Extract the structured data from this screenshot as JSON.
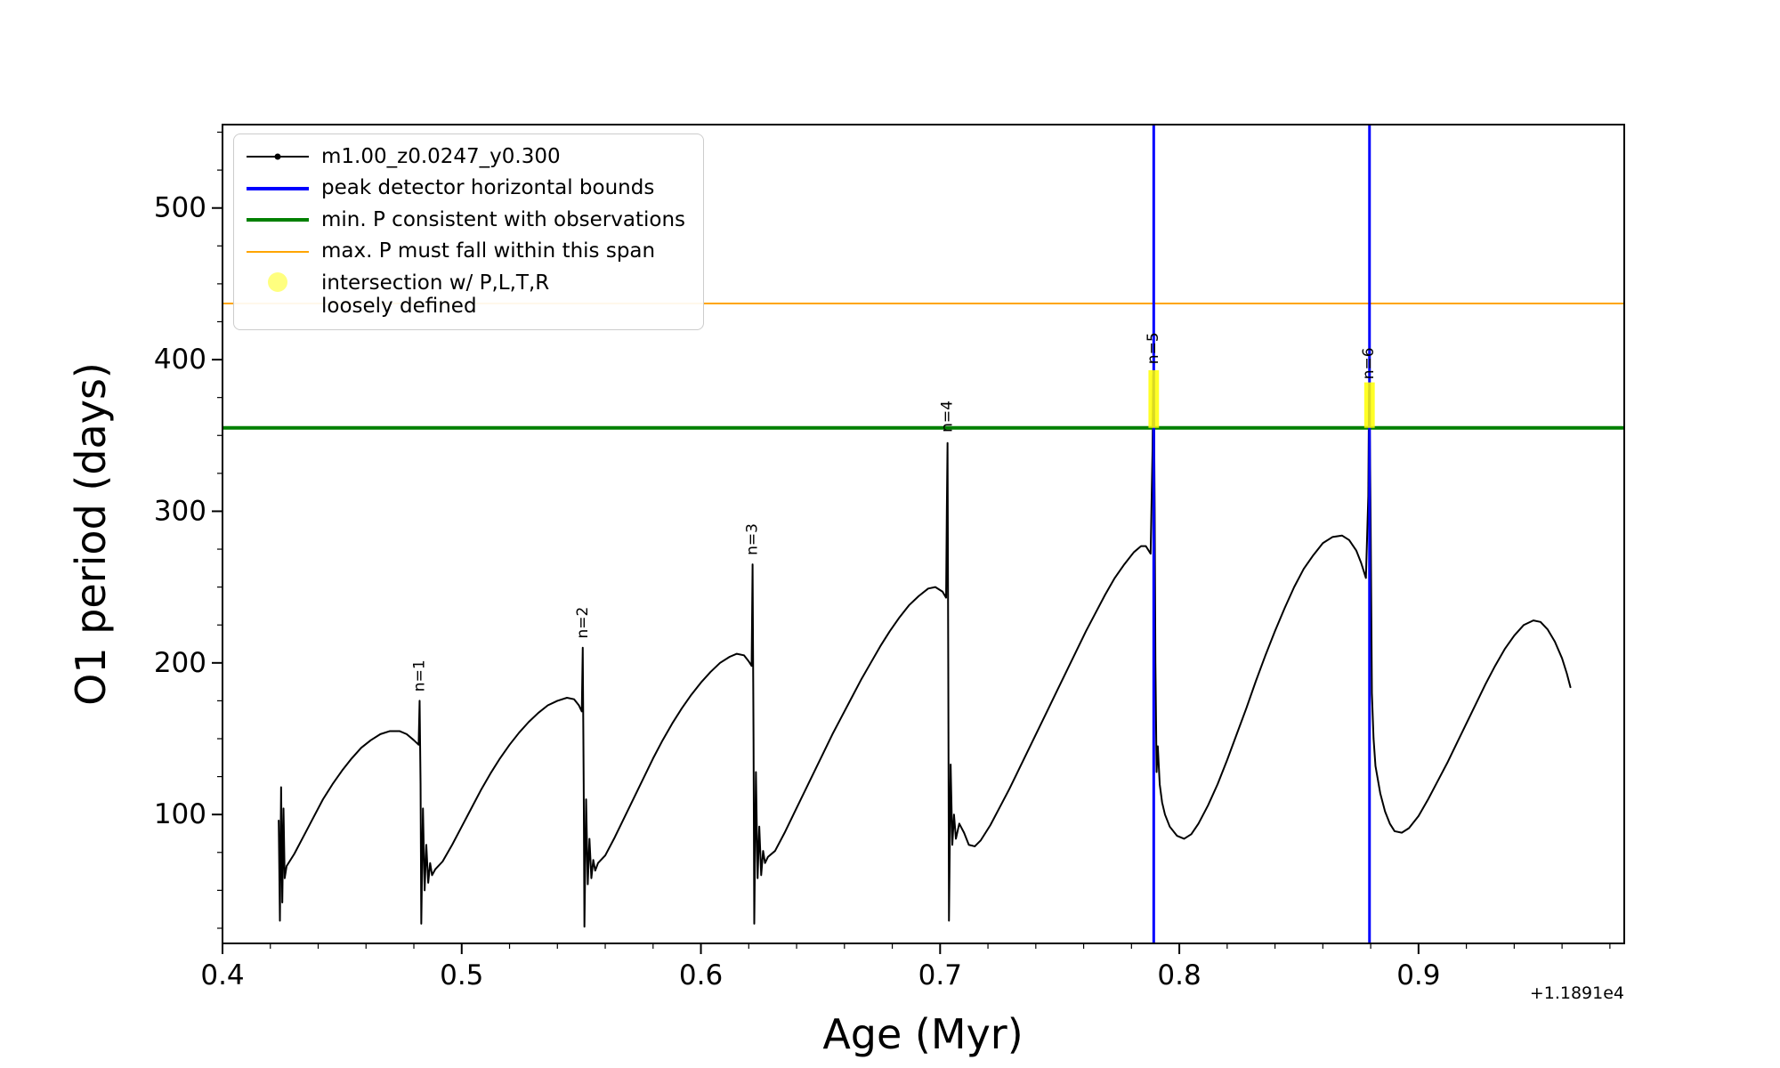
{
  "figure": {
    "xlabel": "Age (Myr)",
    "ylabel": "O1 period (days)",
    "x_offset_text": "+1.1891e4"
  },
  "legend": {
    "items": [
      {
        "label": "m1.00_z0.0247_y0.300",
        "type": "line-dot",
        "color": "#000000",
        "line_width": 2
      },
      {
        "label": "peak detector horizontal bounds",
        "type": "line",
        "color": "#0000ff",
        "line_width": 4
      },
      {
        "label": "min. P consistent with observations",
        "type": "line",
        "color": "#008000",
        "line_width": 4
      },
      {
        "label": "max. P must fall within this span",
        "type": "line",
        "color": "#ffa500",
        "line_width": 2
      },
      {
        "label": "intersection w/ P,L,T,R loosely defined",
        "label_lines": [
          "intersection w/ P,L,T,R",
          "loosely defined"
        ],
        "type": "dot",
        "color": "rgba(255,255,0,0.5)"
      }
    ]
  },
  "chart_data": {
    "type": "line",
    "title": "",
    "xlabel": "Age (Myr)",
    "ylabel": "O1 period (days)",
    "x_axis_offset": "+1.1891e4",
    "xlim": [
      0.4,
      0.986
    ],
    "ylim": [
      15,
      555
    ],
    "x_major_ticks": [
      0.4,
      0.5,
      0.6,
      0.7,
      0.8,
      0.9
    ],
    "x_minor_step": 0.02,
    "y_major_ticks": [
      100,
      200,
      300,
      400,
      500
    ],
    "y_minor_step": 25,
    "grid": false,
    "legend_position": "upper left",
    "series": [
      {
        "name": "m1.00_z0.0247_y0.300",
        "color": "#000000",
        "marker": "dot",
        "points": [
          [
            0.4235,
            96
          ],
          [
            0.424,
            30
          ],
          [
            0.4245,
            118
          ],
          [
            0.425,
            42
          ],
          [
            0.4255,
            104
          ],
          [
            0.426,
            58
          ],
          [
            0.4268,
            66
          ],
          [
            0.43,
            74
          ],
          [
            0.434,
            86
          ],
          [
            0.438,
            98
          ],
          [
            0.442,
            110
          ],
          [
            0.446,
            120
          ],
          [
            0.45,
            129
          ],
          [
            0.454,
            137
          ],
          [
            0.458,
            144
          ],
          [
            0.462,
            149
          ],
          [
            0.466,
            153
          ],
          [
            0.47,
            155
          ],
          [
            0.474,
            155
          ],
          [
            0.477,
            153
          ],
          [
            0.48,
            149
          ],
          [
            0.482,
            146
          ],
          [
            0.4824,
            175
          ],
          [
            0.4828,
            120
          ],
          [
            0.4831,
            28
          ],
          [
            0.4838,
            104
          ],
          [
            0.4845,
            50
          ],
          [
            0.4852,
            80
          ],
          [
            0.486,
            55
          ],
          [
            0.4868,
            68
          ],
          [
            0.4876,
            60
          ],
          [
            0.489,
            64
          ],
          [
            0.492,
            69
          ],
          [
            0.496,
            80
          ],
          [
            0.5,
            92
          ],
          [
            0.504,
            104
          ],
          [
            0.508,
            116
          ],
          [
            0.512,
            127
          ],
          [
            0.516,
            137
          ],
          [
            0.52,
            146
          ],
          [
            0.524,
            154
          ],
          [
            0.528,
            161
          ],
          [
            0.532,
            167
          ],
          [
            0.536,
            172
          ],
          [
            0.54,
            175
          ],
          [
            0.544,
            177
          ],
          [
            0.547,
            176
          ],
          [
            0.549,
            172
          ],
          [
            0.5502,
            168
          ],
          [
            0.5506,
            210
          ],
          [
            0.551,
            120
          ],
          [
            0.5513,
            26
          ],
          [
            0.552,
            110
          ],
          [
            0.5527,
            54
          ],
          [
            0.5534,
            84
          ],
          [
            0.5542,
            58
          ],
          [
            0.555,
            70
          ],
          [
            0.5558,
            63
          ],
          [
            0.557,
            68
          ],
          [
            0.56,
            73
          ],
          [
            0.564,
            85
          ],
          [
            0.568,
            98
          ],
          [
            0.572,
            111
          ],
          [
            0.576,
            124
          ],
          [
            0.58,
            137
          ],
          [
            0.584,
            149
          ],
          [
            0.588,
            160
          ],
          [
            0.592,
            170
          ],
          [
            0.596,
            179
          ],
          [
            0.6,
            187
          ],
          [
            0.604,
            194
          ],
          [
            0.608,
            200
          ],
          [
            0.612,
            204
          ],
          [
            0.615,
            206
          ],
          [
            0.618,
            205
          ],
          [
            0.62,
            201
          ],
          [
            0.6212,
            198
          ],
          [
            0.6216,
            265
          ],
          [
            0.622,
            150
          ],
          [
            0.6223,
            28
          ],
          [
            0.623,
            128
          ],
          [
            0.6237,
            58
          ],
          [
            0.6244,
            92
          ],
          [
            0.6252,
            60
          ],
          [
            0.626,
            76
          ],
          [
            0.6268,
            68
          ],
          [
            0.628,
            72
          ],
          [
            0.631,
            76
          ],
          [
            0.635,
            88
          ],
          [
            0.639,
            101
          ],
          [
            0.643,
            114
          ],
          [
            0.647,
            127
          ],
          [
            0.651,
            140
          ],
          [
            0.655,
            153
          ],
          [
            0.659,
            165
          ],
          [
            0.663,
            177
          ],
          [
            0.667,
            189
          ],
          [
            0.671,
            200
          ],
          [
            0.675,
            211
          ],
          [
            0.679,
            221
          ],
          [
            0.683,
            230
          ],
          [
            0.687,
            238
          ],
          [
            0.691,
            244
          ],
          [
            0.695,
            249
          ],
          [
            0.698,
            250
          ],
          [
            0.701,
            247
          ],
          [
            0.7025,
            243
          ],
          [
            0.7028,
            300
          ],
          [
            0.7031,
            345
          ],
          [
            0.7034,
            200
          ],
          [
            0.7037,
            30
          ],
          [
            0.7044,
            133
          ],
          [
            0.7051,
            80
          ],
          [
            0.7058,
            100
          ],
          [
            0.7066,
            84
          ],
          [
            0.708,
            94
          ],
          [
            0.71,
            88
          ],
          [
            0.712,
            80
          ],
          [
            0.7145,
            79
          ],
          [
            0.717,
            83
          ],
          [
            0.721,
            93
          ],
          [
            0.725,
            105
          ],
          [
            0.729,
            117
          ],
          [
            0.733,
            130
          ],
          [
            0.737,
            143
          ],
          [
            0.741,
            156
          ],
          [
            0.745,
            169
          ],
          [
            0.749,
            182
          ],
          [
            0.753,
            195
          ],
          [
            0.757,
            208
          ],
          [
            0.761,
            221
          ],
          [
            0.765,
            233
          ],
          [
            0.769,
            245
          ],
          [
            0.773,
            256
          ],
          [
            0.777,
            265
          ],
          [
            0.781,
            273
          ],
          [
            0.784,
            277
          ],
          [
            0.786,
            277
          ],
          [
            0.788,
            272
          ],
          [
            0.7888,
            340
          ],
          [
            0.7891,
            390
          ],
          [
            0.7894,
            370
          ],
          [
            0.7897,
            300
          ],
          [
            0.79,
            200
          ],
          [
            0.7905,
            128
          ],
          [
            0.791,
            145
          ],
          [
            0.7918,
            120
          ],
          [
            0.7928,
            108
          ],
          [
            0.794,
            100
          ],
          [
            0.796,
            92
          ],
          [
            0.799,
            86
          ],
          [
            0.802,
            84
          ],
          [
            0.805,
            87
          ],
          [
            0.808,
            94
          ],
          [
            0.812,
            106
          ],
          [
            0.816,
            120
          ],
          [
            0.82,
            136
          ],
          [
            0.824,
            153
          ],
          [
            0.828,
            170
          ],
          [
            0.832,
            188
          ],
          [
            0.836,
            205
          ],
          [
            0.84,
            221
          ],
          [
            0.844,
            236
          ],
          [
            0.848,
            250
          ],
          [
            0.852,
            262
          ],
          [
            0.856,
            271
          ],
          [
            0.86,
            279
          ],
          [
            0.864,
            283
          ],
          [
            0.868,
            284
          ],
          [
            0.871,
            281
          ],
          [
            0.874,
            274
          ],
          [
            0.876,
            266
          ],
          [
            0.878,
            256
          ],
          [
            0.879,
            310
          ],
          [
            0.8793,
            380
          ],
          [
            0.8796,
            360
          ],
          [
            0.88,
            290
          ],
          [
            0.8805,
            180
          ],
          [
            0.8812,
            150
          ],
          [
            0.882,
            132
          ],
          [
            0.884,
            114
          ],
          [
            0.886,
            102
          ],
          [
            0.888,
            94
          ],
          [
            0.89,
            89
          ],
          [
            0.893,
            88
          ],
          [
            0.896,
            91
          ],
          [
            0.9,
            99
          ],
          [
            0.904,
            110
          ],
          [
            0.908,
            122
          ],
          [
            0.912,
            134
          ],
          [
            0.916,
            147
          ],
          [
            0.92,
            160
          ],
          [
            0.924,
            173
          ],
          [
            0.928,
            186
          ],
          [
            0.932,
            198
          ],
          [
            0.936,
            209
          ],
          [
            0.94,
            218
          ],
          [
            0.944,
            225
          ],
          [
            0.948,
            228
          ],
          [
            0.951,
            227
          ],
          [
            0.954,
            222
          ],
          [
            0.957,
            214
          ],
          [
            0.96,
            203
          ],
          [
            0.962,
            193
          ],
          [
            0.9635,
            184
          ]
        ]
      }
    ],
    "vlines": {
      "label": "peak detector horizontal bounds",
      "color": "#0000ff",
      "width": 3,
      "x": [
        0.7893,
        0.8795
      ]
    },
    "hlines": [
      {
        "label": "min. P consistent with observations",
        "y": 355,
        "color": "#008000",
        "width": 4
      },
      {
        "label": "max. P must fall within this span",
        "y": 437,
        "color": "#ffa500",
        "width": 2
      }
    ],
    "patches": [
      {
        "label": "intersection w/ P,L,T,R loosely defined",
        "x": 0.7893,
        "y0": 355,
        "y1": 393,
        "half_width": 0.0022,
        "color": "#ffff00",
        "opacity": 0.85
      },
      {
        "label": "intersection w/ P,L,T,R loosely defined",
        "x": 0.8795,
        "y0": 355,
        "y1": 385,
        "half_width": 0.0022,
        "color": "#ffff00",
        "opacity": 0.85
      }
    ],
    "peak_labels": [
      {
        "text": "n=1",
        "x": 0.4824,
        "y": 181
      },
      {
        "text": "n=2",
        "x": 0.5506,
        "y": 216
      },
      {
        "text": "n=3",
        "x": 0.6216,
        "y": 271
      },
      {
        "text": "n=4",
        "x": 0.7031,
        "y": 352
      },
      {
        "text": "n=5",
        "x": 0.7891,
        "y": 397
      },
      {
        "text": "n=6",
        "x": 0.8793,
        "y": 387
      }
    ]
  }
}
